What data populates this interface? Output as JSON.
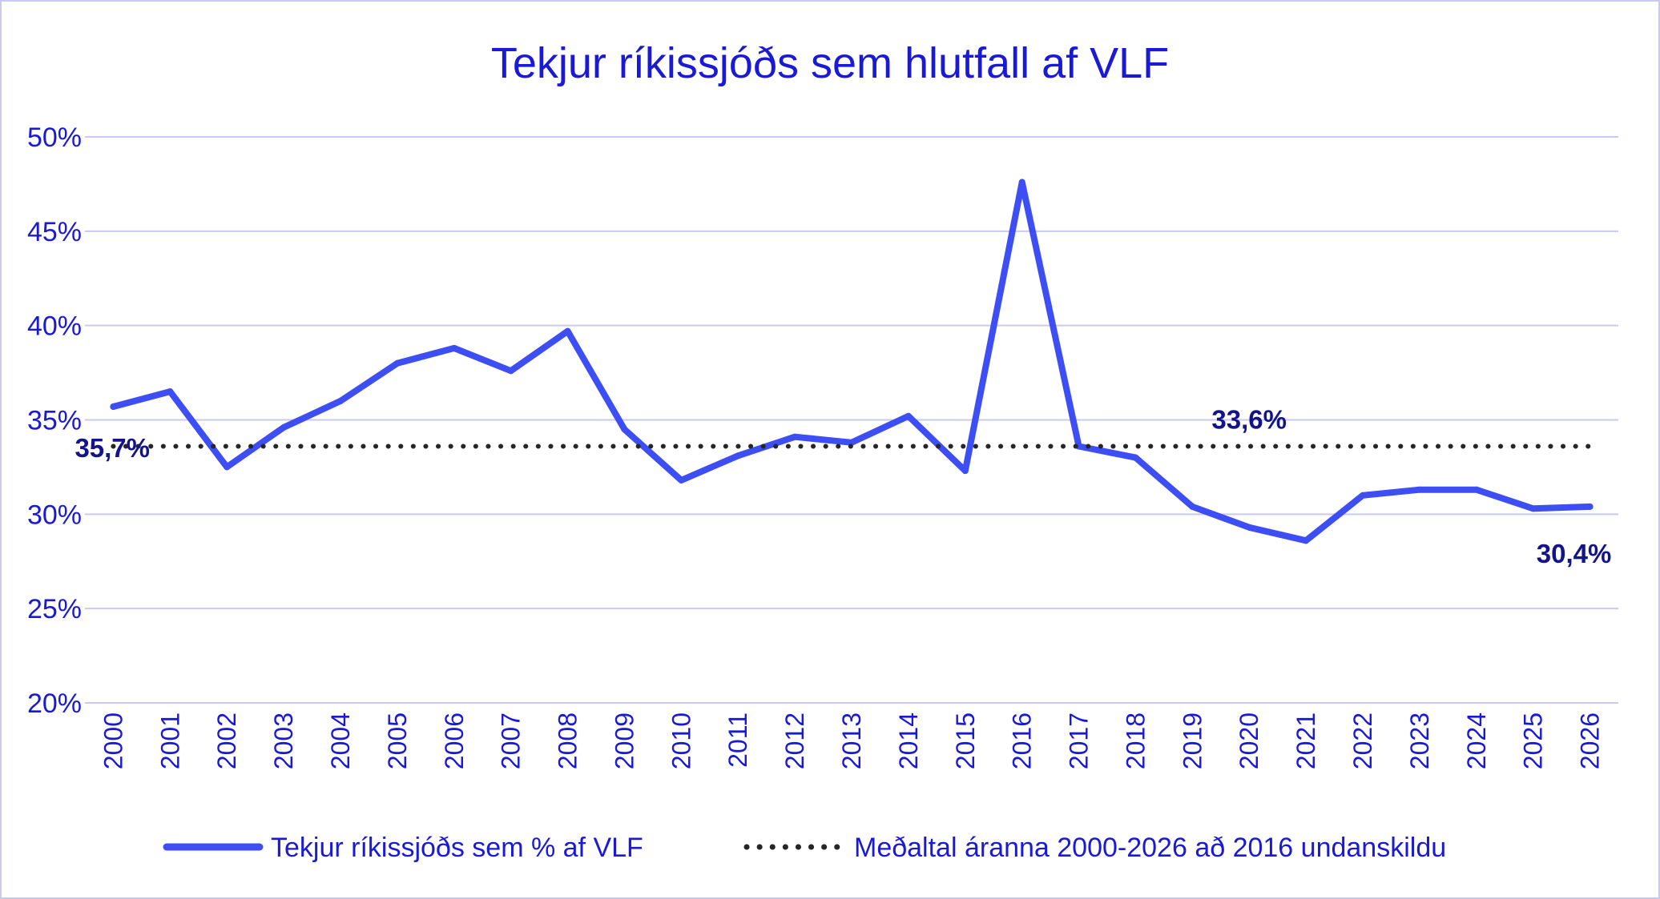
{
  "chart_data": {
    "type": "line",
    "title": "Tekjur ríkissjóðs sem hlutfall af VLF",
    "xlabel": "",
    "ylabel": "",
    "ylim": [
      20,
      50
    ],
    "ytick_step": 5,
    "y_ticks": [
      "20%",
      "25%",
      "30%",
      "35%",
      "40%",
      "45%",
      "50%"
    ],
    "grid": true,
    "legend_position": "bottom",
    "categories": [
      "2000",
      "2001",
      "2002",
      "2003",
      "2004",
      "2005",
      "2006",
      "2007",
      "2008",
      "2009",
      "2010",
      "2011",
      "2012",
      "2013",
      "2014",
      "2015",
      "2016",
      "2017",
      "2018",
      "2019",
      "2020",
      "2021",
      "2022",
      "2023",
      "2024",
      "2025",
      "2026"
    ],
    "series": [
      {
        "name": "Tekjur ríkissjóðs sem % af VLF",
        "style": "solid",
        "color": "#3d4ef5",
        "values": [
          35.7,
          36.5,
          32.5,
          34.6,
          36.0,
          38.0,
          38.8,
          37.6,
          39.7,
          34.5,
          31.8,
          33.1,
          34.1,
          33.8,
          35.2,
          32.3,
          47.6,
          33.6,
          33.0,
          30.4,
          29.3,
          28.6,
          31.0,
          31.3,
          31.3,
          30.3,
          30.4
        ]
      },
      {
        "name": "Meðaltal áranna 2000-2026 að 2016 undanskildu",
        "style": "dotted",
        "color": "#262626",
        "values": [
          33.6,
          33.6,
          33.6,
          33.6,
          33.6,
          33.6,
          33.6,
          33.6,
          33.6,
          33.6,
          33.6,
          33.6,
          33.6,
          33.6,
          33.6,
          33.6,
          33.6,
          33.6,
          33.6,
          33.6,
          33.6,
          33.6,
          33.6,
          33.6,
          33.6,
          33.6,
          33.6
        ]
      }
    ],
    "annotations": [
      {
        "text": "35,7%",
        "category": "2000",
        "value": 35.7,
        "anchor": "below-left"
      },
      {
        "text": "33,6%",
        "category": "2020",
        "value": 33.6,
        "anchor": "above"
      },
      {
        "text": "30,4%",
        "category": "2026",
        "value": 30.4,
        "anchor": "below"
      }
    ],
    "colors": {
      "text": "#1a1ad6",
      "label": "#14148a",
      "grid": "#c9c9f2",
      "line": "#3d4ef5",
      "average": "#262626"
    }
  }
}
